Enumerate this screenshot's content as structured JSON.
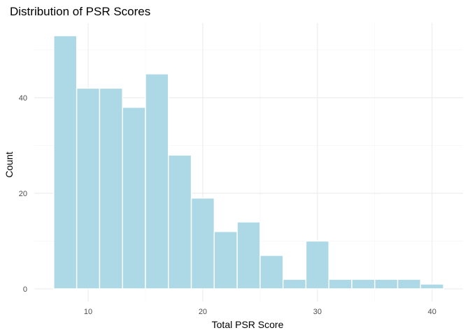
{
  "chart_data": {
    "type": "bar",
    "subtype": "histogram",
    "title": "Distribution of PSR Scores",
    "xlabel": "Total PSR Score",
    "ylabel": "Count",
    "bins": [
      {
        "x0": 7,
        "x1": 9,
        "count": 53
      },
      {
        "x0": 9,
        "x1": 11,
        "count": 42
      },
      {
        "x0": 11,
        "x1": 13,
        "count": 42
      },
      {
        "x0": 13,
        "x1": 15,
        "count": 38
      },
      {
        "x0": 15,
        "x1": 17,
        "count": 45
      },
      {
        "x0": 17,
        "x1": 19,
        "count": 28
      },
      {
        "x0": 19,
        "x1": 21,
        "count": 19
      },
      {
        "x0": 21,
        "x1": 23,
        "count": 12
      },
      {
        "x0": 23,
        "x1": 25,
        "count": 14
      },
      {
        "x0": 25,
        "x1": 27,
        "count": 7
      },
      {
        "x0": 27,
        "x1": 29,
        "count": 2
      },
      {
        "x0": 29,
        "x1": 31,
        "count": 10
      },
      {
        "x0": 31,
        "x1": 33,
        "count": 2
      },
      {
        "x0": 33,
        "x1": 35,
        "count": 2
      },
      {
        "x0": 35,
        "x1": 37,
        "count": 2
      },
      {
        "x0": 37,
        "x1": 39,
        "count": 2
      },
      {
        "x0": 39,
        "x1": 41,
        "count": 1
      }
    ],
    "xlim": [
      5.3,
      42.7
    ],
    "ylim": [
      -2.65,
      55.65
    ],
    "x_ticks": [
      10,
      20,
      30,
      40
    ],
    "y_ticks": [
      0,
      20,
      40
    ],
    "grid": true,
    "colors": {
      "bar_fill": "#add8e6",
      "bar_outline": "#ffffff",
      "grid_major": "#ebebeb",
      "grid_minor": "#f4f4f4",
      "tick_text": "#4d4d4d",
      "title_text": "#000000"
    }
  }
}
